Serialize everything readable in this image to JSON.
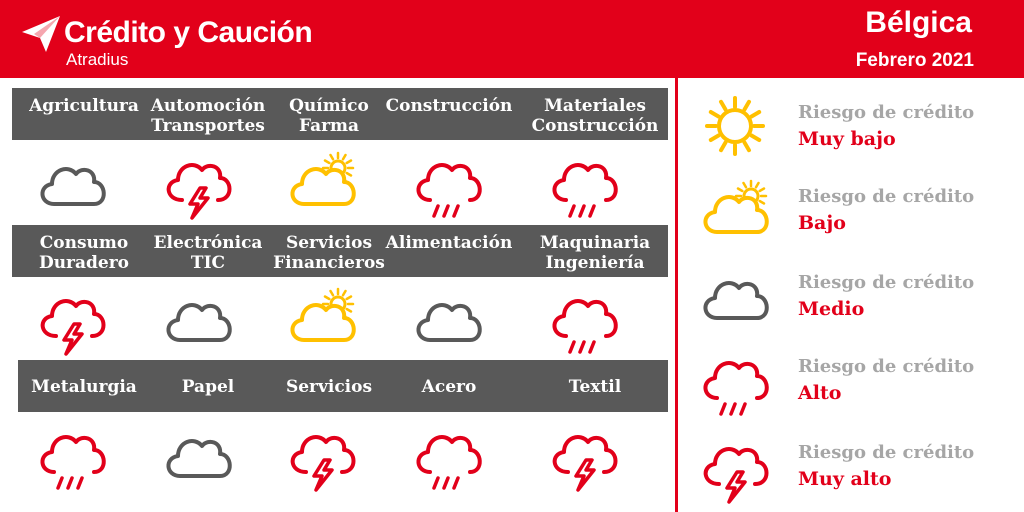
{
  "brand": {
    "name": "Crédito y Caución",
    "sub": "Atradius"
  },
  "header": {
    "country": "Bélgica",
    "period": "Febrero 2021"
  },
  "colors": {
    "brand_red": "#e2001a",
    "band_gray": "#595959",
    "legend_gray": "#a6a6a6",
    "sun_yellow": "#ffc000",
    "cloud_gray": "#595959"
  },
  "sectors": [
    {
      "line1": "Agricultura",
      "line2": "",
      "risk": "Medio",
      "icon": "cloud-icon"
    },
    {
      "line1": "Automoción",
      "line2": "Transportes",
      "risk": "Muy alto",
      "icon": "cloud-lightning-icon"
    },
    {
      "line1": "Químico",
      "line2": "Farma",
      "risk": "Bajo",
      "icon": "sun-cloud-icon"
    },
    {
      "line1": "Construcción",
      "line2": "",
      "risk": "Alto",
      "icon": "cloud-rain-icon"
    },
    {
      "line1": "Materiales",
      "line2": "Construcción",
      "risk": "Alto",
      "icon": "cloud-rain-icon"
    },
    {
      "line1": "Consumo",
      "line2": "Duradero",
      "risk": "Muy alto",
      "icon": "cloud-lightning-icon"
    },
    {
      "line1": "Electrónica",
      "line2": "TIC",
      "risk": "Medio",
      "icon": "cloud-icon"
    },
    {
      "line1": "Servicios",
      "line2": "Financieros",
      "risk": "Bajo",
      "icon": "sun-cloud-icon"
    },
    {
      "line1": "Alimentación",
      "line2": "",
      "risk": "Medio",
      "icon": "cloud-icon"
    },
    {
      "line1": "Maquinaria",
      "line2": "Ingeniería",
      "risk": "Alto",
      "icon": "cloud-rain-icon"
    },
    {
      "line1": "Metalurgia",
      "line2": "",
      "risk": "Alto",
      "icon": "cloud-rain-icon"
    },
    {
      "line1": "Papel",
      "line2": "",
      "risk": "Medio",
      "icon": "cloud-icon"
    },
    {
      "line1": "Servicios",
      "line2": "",
      "risk": "Muy alto",
      "icon": "cloud-lightning-icon"
    },
    {
      "line1": "Acero",
      "line2": "",
      "risk": "Alto",
      "icon": "cloud-rain-icon"
    },
    {
      "line1": "Textil",
      "line2": "",
      "risk": "Muy alto",
      "icon": "cloud-lightning-icon"
    }
  ],
  "legend": {
    "label": "Riesgo de crédito",
    "levels": [
      {
        "level": "Muy bajo",
        "icon": "sun-icon"
      },
      {
        "level": "Bajo",
        "icon": "sun-cloud-icon"
      },
      {
        "level": "Medio",
        "icon": "cloud-icon"
      },
      {
        "level": "Alto",
        "icon": "cloud-rain-icon"
      },
      {
        "level": "Muy alto",
        "icon": "cloud-lightning-icon"
      }
    ]
  }
}
